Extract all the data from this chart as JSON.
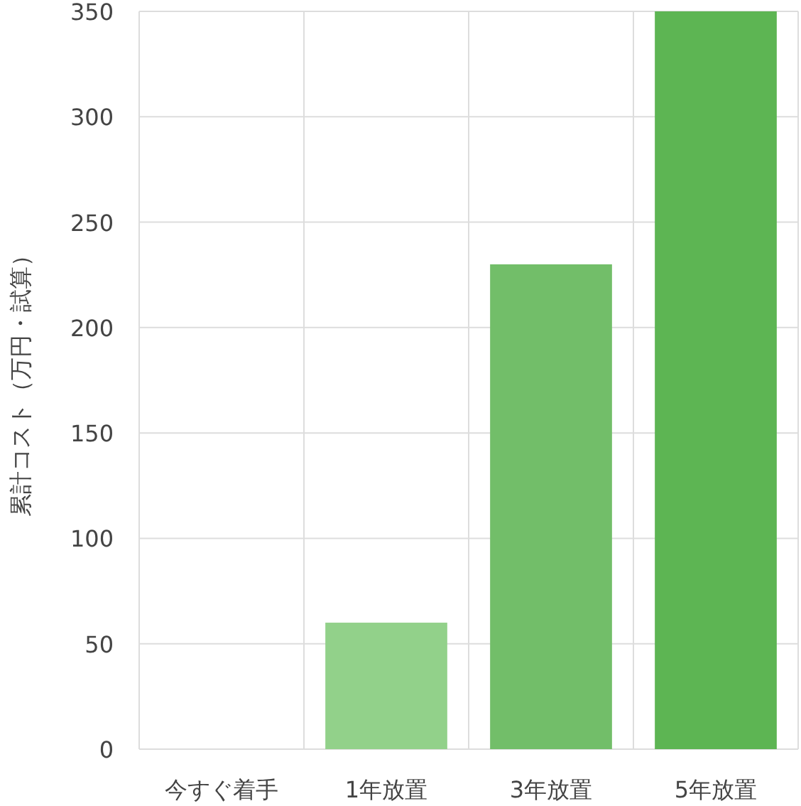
{
  "chart_data": {
    "type": "bar",
    "ylabel": "累計コスト（万円・試算）",
    "categories": [
      "今すぐ着手",
      "1年放置",
      "3年放置",
      "5年放置"
    ],
    "values": [
      0,
      60,
      230,
      350
    ],
    "colors": [
      "#5db553",
      "#92d18a",
      "#72be69",
      "#5db553"
    ],
    "ylim": [
      0,
      350
    ],
    "yticks": [
      0,
      50,
      100,
      150,
      200,
      250,
      300,
      350
    ],
    "grid": true
  }
}
